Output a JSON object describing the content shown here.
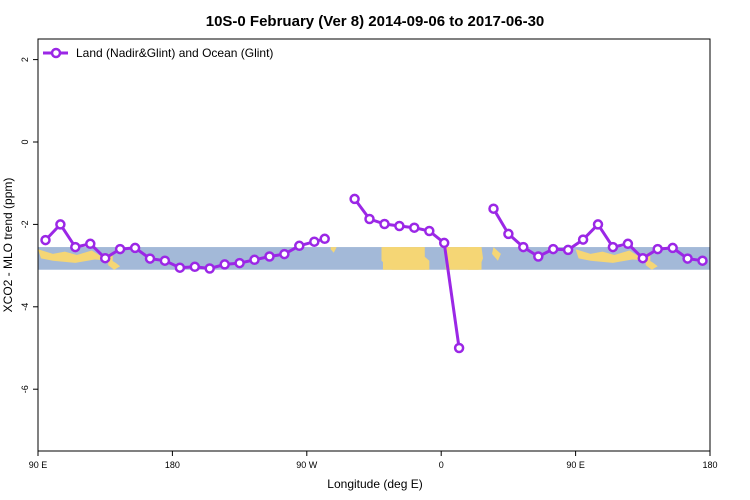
{
  "chart_data": {
    "type": "line",
    "title": "10S-0 February (Ver 8)   2014-09-06 to 2017-06-30",
    "xlabel": "Longitude (deg E)",
    "ylabel": "XCO2 - MLO trend (ppm)",
    "xlim": [
      90,
      540
    ],
    "ylim": [
      -7.5,
      2.5
    ],
    "x_ticks": [
      {
        "value": 90,
        "label": "90 E"
      },
      {
        "value": 180,
        "label": "180"
      },
      {
        "value": 270,
        "label": "90 W"
      },
      {
        "value": 360,
        "label": "0"
      },
      {
        "value": 450,
        "label": "90 E"
      },
      {
        "value": 540,
        "label": "180"
      }
    ],
    "y_ticks": [
      {
        "value": 2,
        "label": "2"
      },
      {
        "value": 0,
        "label": "0"
      },
      {
        "value": -2,
        "label": "-2"
      },
      {
        "value": -4,
        "label": "-4"
      },
      {
        "value": -6,
        "label": "-6"
      }
    ],
    "grid": false,
    "legend": {
      "position": "top-left"
    },
    "band": {
      "y_range": [
        -3.1,
        -2.55
      ],
      "color": "#a3b9d8",
      "land_color": "#f5d675",
      "note_color": "#ffcc66"
    },
    "series": [
      {
        "name": "Land (Nadir&Glint) and Ocean (Glint)",
        "color": "#9b27e6",
        "segments": [
          [
            [
              95,
              -2.38
            ],
            [
              105,
              -2.0
            ],
            [
              115,
              -2.55
            ],
            [
              125,
              -2.47
            ],
            [
              135,
              -2.82
            ],
            [
              145,
              -2.6
            ],
            [
              155,
              -2.57
            ],
            [
              165,
              -2.83
            ],
            [
              175,
              -2.88
            ],
            [
              185,
              -3.05
            ],
            [
              195,
              -3.03
            ],
            [
              205,
              -3.07
            ],
            [
              215,
              -2.97
            ],
            [
              225,
              -2.94
            ],
            [
              235,
              -2.86
            ],
            [
              245,
              -2.78
            ],
            [
              255,
              -2.72
            ],
            [
              265,
              -2.52
            ],
            [
              275,
              -2.42
            ],
            [
              282,
              -2.35
            ]
          ],
          [
            [
              302,
              -1.38
            ],
            [
              312,
              -1.87
            ],
            [
              322,
              -1.99
            ],
            [
              332,
              -2.04
            ],
            [
              342,
              -2.08
            ],
            [
              352,
              -2.16
            ],
            [
              362,
              -2.45
            ],
            [
              372,
              -5.0
            ]
          ],
          [
            [
              395,
              -1.62
            ],
            [
              405,
              -2.23
            ],
            [
              415,
              -2.55
            ],
            [
              425,
              -2.78
            ],
            [
              435,
              -2.6
            ],
            [
              445,
              -2.62
            ],
            [
              455,
              -2.37
            ],
            [
              465,
              -2.0
            ],
            [
              475,
              -2.55
            ],
            [
              485,
              -2.47
            ],
            [
              495,
              -2.82
            ],
            [
              505,
              -2.6
            ],
            [
              515,
              -2.57
            ],
            [
              525,
              -2.83
            ],
            [
              535,
              -2.88
            ]
          ]
        ]
      }
    ]
  }
}
